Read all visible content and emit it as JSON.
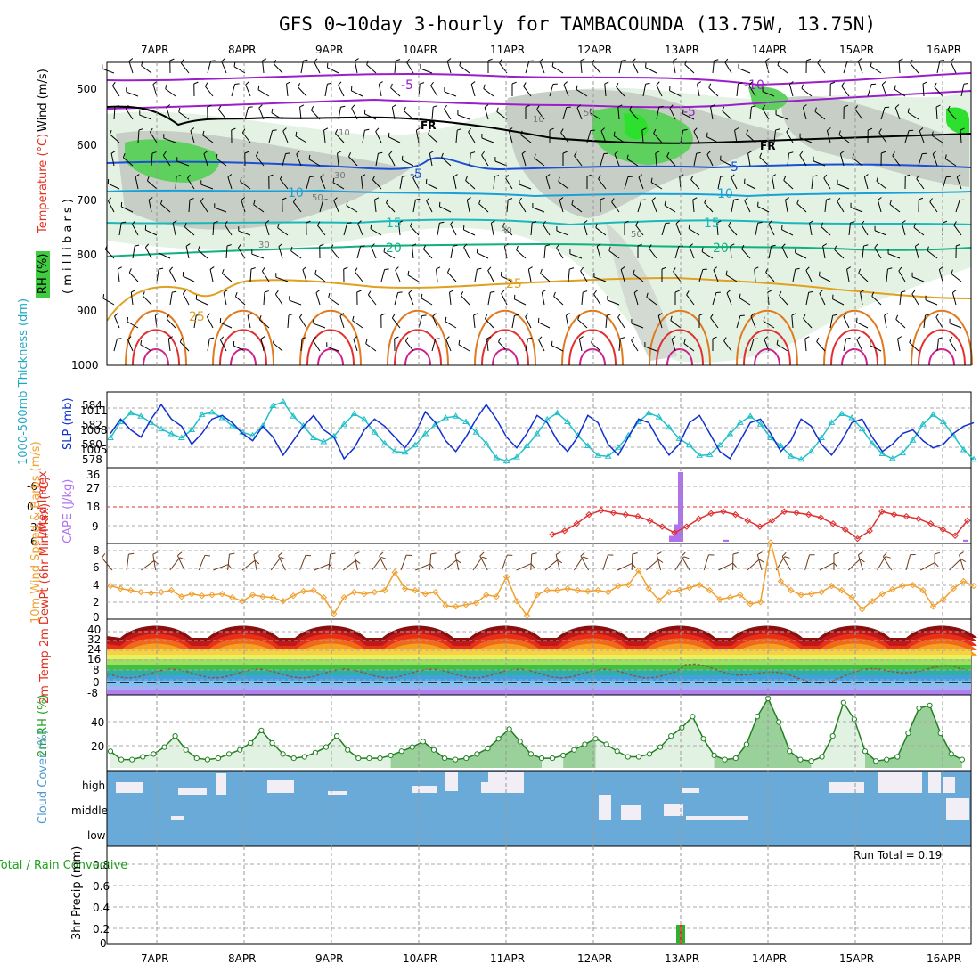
{
  "title": "GFS 0~10day 3-hourly for TAMBACOUNDA (13.75W, 13.75N)",
  "dates": [
    "7APR",
    "8APR",
    "9APR",
    "10APR",
    "11APR",
    "12APR",
    "13APR",
    "14APR",
    "15APR",
    "16APR"
  ],
  "panels": {
    "upper": {
      "ylabel_wind": "Wind (m/s)",
      "ylabel_temp": "Temperature (°C)",
      "ylabel_rh": "RH (%)",
      "ylabel_mb": "( m i l l i b a r s )",
      "pressure_ticks": [
        "500",
        "600",
        "700",
        "800",
        "900",
        "1000"
      ],
      "freezing_label": "FR",
      "temp_labels": [
        "-10",
        "-5",
        "-5",
        "-5",
        "-5",
        "10",
        "10",
        "15",
        "15",
        "20",
        "20",
        "25",
        "25"
      ],
      "rh_labels": [
        "10",
        "30",
        "50",
        "30",
        "50",
        "30",
        "50",
        "10"
      ],
      "colors": {
        "purple": "#9a1fc8",
        "black": "#000000",
        "blue": "#1a4fd6",
        "skyblue": "#1aa0d8",
        "cyan": "#1ab8b8",
        "teal": "#10b080",
        "orange": "#e0a020",
        "red": "#e03020",
        "rh_light": "#e4f2e4",
        "rh_gray": "#b0b8b0",
        "rh_green": "#40cc40"
      }
    },
    "thickness": {
      "ylabel_thk": "1000-500mb Thickness (dm)",
      "ylabel_slp": "SLP (mb)",
      "thk_ticks": [
        "584",
        "582",
        "580",
        "578"
      ],
      "slp_ticks": [
        "1011",
        "1008",
        "1005"
      ],
      "thk_color": "#20c0c8",
      "slp_color": "#1030d0"
    },
    "lifted": {
      "ylabel_li": "Lifted Index",
      "ylabel_cape": "CAPE (J/kg)",
      "li_ticks": [
        "-6",
        "-3",
        "0",
        "3",
        "6"
      ],
      "cape_ticks": [
        "36",
        "27",
        "18",
        "9",
        "0"
      ],
      "li_color": "#e03030",
      "cape_color": "#b070f0"
    },
    "wind10": {
      "ylabel": "10m Wind Speed & Barbs (m/s)",
      "ticks": [
        "8",
        "6",
        "4",
        "2",
        "0"
      ],
      "color": "#f0a030"
    },
    "temp2m": {
      "ylabel": "2m Temp 2m DewPt (6hr Min/Max) (°C)",
      "ticks": [
        "40",
        "32",
        "24",
        "16",
        "8",
        "0",
        "-8"
      ]
    },
    "rh2m": {
      "ylabel": "2m RH (%)",
      "ticks": [
        "40",
        "20"
      ]
    },
    "cloud": {
      "ylabel": "Cloud Cover (%)",
      "levels": [
        "high",
        "middle",
        "low"
      ],
      "color": "#6aaad8"
    },
    "precip": {
      "ylabel_left": "Total / Rain Convective",
      "ylabel_right": "3hr Precip (mm)",
      "ticks": [
        "0.8",
        "0.6",
        "0.4",
        "0.2",
        "0"
      ],
      "run_total": "Run Total = 0.19"
    }
  },
  "chart_data": [
    {
      "type": "line",
      "title": "1000-500mb Thickness (dm) / SLP (mb)",
      "x_unit": "3-hourly steps from 6APR 12Z",
      "series": [
        {
          "name": "1000-500mb Thickness (dm)",
          "ylim": [
            577,
            586
          ],
          "values": [
            580.5,
            582.5,
            583.6,
            583.2,
            582.4,
            581.6,
            581.0,
            580.5,
            581.5,
            583.4,
            583.7,
            583.0,
            582.0,
            581.2,
            580.8,
            582.0,
            584.5,
            585.0,
            583.2,
            582.0,
            580.5,
            580.0,
            580.7,
            582.2,
            583.5,
            582.8,
            581.2,
            579.8,
            578.8,
            578.7,
            579.6,
            581.0,
            582.2,
            583.0,
            583.2,
            582.5,
            581.2,
            579.8,
            578.0,
            577.6,
            578.1,
            579.5,
            581.0,
            582.8,
            583.6,
            582.5,
            580.8,
            579.5,
            578.3,
            578.2,
            579.3,
            580.8,
            582.5,
            583.6,
            583.1,
            581.8,
            580.4,
            579.6,
            578.3,
            578.4,
            579.6,
            581.0,
            582.4,
            583.2,
            582.2,
            580.5,
            579.5,
            578.2,
            577.8,
            578.8,
            580.5,
            582.4,
            583.5,
            583.0,
            581.6,
            579.8,
            578.5,
            577.9,
            578.6,
            580.2,
            582.2,
            583.4,
            582.5,
            580.8,
            579.0,
            577.8
          ]
        },
        {
          "name": "SLP (mb)",
          "ylim": [
            1003,
            1013
          ],
          "values": [
            1007.5,
            1009.5,
            1008.0,
            1007.0,
            1009.5,
            1011.5,
            1009.5,
            1008.5,
            1006.0,
            1007.5,
            1009.5,
            1010.0,
            1009.0,
            1007.5,
            1006.5,
            1008.5,
            1007.0,
            1004.5,
            1006.5,
            1008.5,
            1010.0,
            1008.0,
            1007.0,
            1004.0,
            1005.5,
            1008.0,
            1009.5,
            1008.5,
            1007.0,
            1005.5,
            1007.5,
            1010.5,
            1009.0,
            1006.5,
            1005.0,
            1007.0,
            1009.5,
            1011.5,
            1009.5,
            1007.0,
            1005.5,
            1007.5,
            1010.0,
            1009.0,
            1006.5,
            1005.0,
            1007.0,
            1010.0,
            1009.0,
            1006.0,
            1004.5,
            1007.0,
            1009.5,
            1009.0,
            1006.5,
            1004.5,
            1006.0,
            1009.0,
            1010.0,
            1007.5,
            1005.0,
            1004.0,
            1006.5,
            1009.0,
            1009.5,
            1007.5,
            1005.0,
            1006.5,
            1009.5,
            1008.5,
            1006.0,
            1004.5,
            1006.5,
            1009.0,
            1009.5,
            1007.0,
            1005.0,
            1006.0,
            1007.5,
            1008.0,
            1006.5,
            1005.5,
            1006.0,
            1007.5,
            1008.5,
            1009.0
          ]
        }
      ]
    },
    {
      "type": "bar",
      "title": "CAPE (J/kg)",
      "ylim": [
        0,
        36
      ],
      "points": [
        {
          "day": "13APR",
          "values": [
            3,
            9,
            36
          ]
        },
        {
          "day": "13APR late",
          "values": [
            1
          ]
        },
        {
          "day": "16APR",
          "values": [
            1
          ]
        }
      ]
    },
    {
      "type": "line",
      "title": "Lifted Index",
      "ylim": [
        6,
        -6
      ],
      "values": [
        4.8,
        4.2,
        3.0,
        1.5,
        0.8,
        1.2,
        1.5,
        1.8,
        2.5,
        3.5,
        4.5,
        3.5,
        2.2,
        1.3,
        1.0,
        1.5,
        2.5,
        3.5,
        2.5,
        1.0,
        1.2,
        1.5,
        2.0,
        3.0,
        4.0,
        5.5,
        4.2,
        1.0,
        1.5,
        1.8,
        2.2,
        3.0,
        4.0,
        5.0,
        2.5
      ]
    },
    {
      "type": "line",
      "title": "10m Wind Speed (m/s)",
      "ylim": [
        0,
        8
      ],
      "values": [
        3.5,
        3.2,
        3.0,
        2.8,
        2.7,
        2.8,
        3.0,
        2.3,
        2.6,
        2.4,
        2.5,
        2.6,
        2.2,
        1.8,
        2.5,
        2.3,
        2.2,
        1.8,
        2.4,
        2.9,
        3.0,
        2.2,
        0.4,
        2.2,
        2.8,
        2.6,
        2.8,
        3.0,
        5.0,
        3.2,
        3.0,
        2.6,
        2.8,
        1.3,
        1.2,
        1.4,
        1.6,
        2.5,
        2.3,
        4.5,
        1.8,
        0.2,
        2.5,
        3.0,
        3.0,
        3.2,
        3.0,
        2.9,
        3.0,
        2.8,
        3.5,
        3.6,
        5.2,
        3.2,
        1.9,
        2.8,
        3.0,
        3.3,
        3.6,
        3.0,
        2.0,
        2.2,
        2.5,
        1.5,
        1.7,
        8.3,
        4.0,
        3.0,
        2.5,
        2.6,
        2.8,
        3.5,
        3.0,
        2.2,
        0.9,
        1.8,
        2.6,
        3.1,
        3.5,
        3.6,
        3.0,
        1.2,
        2.0,
        3.2,
        4.0,
        3.5
      ]
    },
    {
      "type": "line",
      "title": "2m RH (%)",
      "ylim": [
        5,
        55
      ],
      "values": [
        17,
        11,
        11,
        13,
        15,
        20,
        28,
        18,
        12,
        11,
        12,
        15,
        18,
        23,
        32,
        23,
        15,
        12,
        13,
        16,
        20,
        28,
        18,
        12,
        12,
        12,
        14,
        17,
        20,
        24,
        18,
        12,
        11,
        12,
        15,
        19,
        26,
        33,
        24,
        15,
        12,
        12,
        14,
        18,
        22,
        26,
        22,
        17,
        13,
        13,
        15,
        20,
        28,
        34,
        42,
        26,
        14,
        11,
        12,
        22,
        42,
        55,
        38,
        17,
        11,
        10,
        13,
        28,
        52,
        40,
        17,
        10,
        11,
        13,
        30,
        48,
        50,
        30,
        15,
        11
      ]
    },
    {
      "type": "bar",
      "title": "3hr Precip (mm)",
      "ylim": [
        0,
        0.9
      ],
      "categories": [
        "13APR 00Z"
      ],
      "values": [
        0.19
      ]
    }
  ]
}
